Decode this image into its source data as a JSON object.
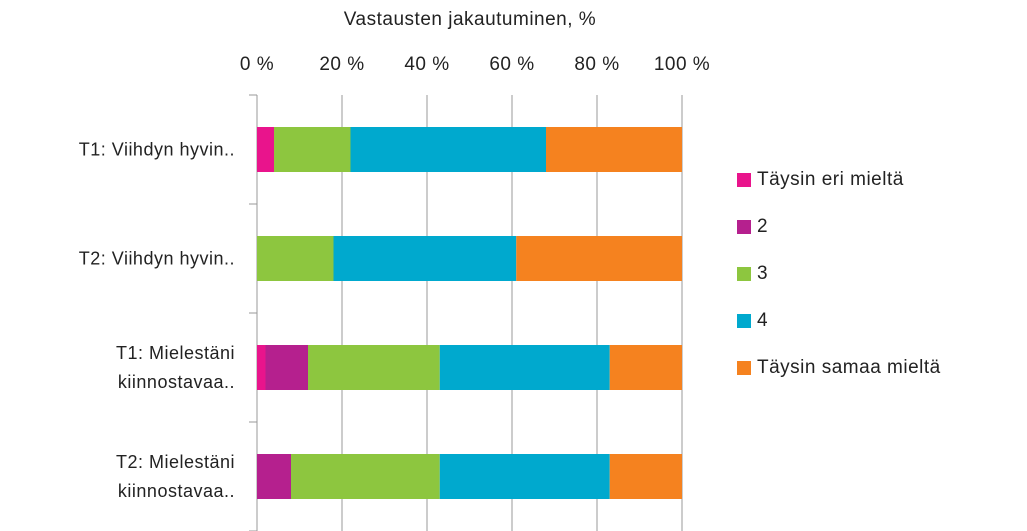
{
  "chart_data": {
    "type": "stacked_barh",
    "title": "Vastausten jakautuminen, %",
    "categories": [
      "T1: Viihdyn hyvin..",
      "T2: Viihdyn hyvin..",
      "T1: Mielestäni kiinnostavaa..",
      "T2: Mielestäni kiinnostavaa.."
    ],
    "series": [
      {
        "name": "Täysin eri mieltä",
        "color": "#e9148c",
        "values": [
          4,
          0,
          2,
          0
        ]
      },
      {
        "name": "2",
        "color": "#b5208e",
        "values": [
          0,
          0,
          10,
          8
        ]
      },
      {
        "name": "3",
        "color": "#8dc63f",
        "values": [
          18,
          18,
          31,
          35
        ]
      },
      {
        "name": "4",
        "color": "#00a9ce",
        "values": [
          46,
          43,
          40,
          40
        ]
      },
      {
        "name": "Täysin samaa mieltä",
        "color": "#f5821f",
        "values": [
          32,
          39,
          17,
          17
        ]
      }
    ],
    "xlim": [
      0,
      100
    ],
    "xticks": [
      {
        "value": 0,
        "label": "0 %"
      },
      {
        "value": 20,
        "label": "20 %"
      },
      {
        "value": 40,
        "label": "40 %"
      },
      {
        "value": 60,
        "label": "60 %"
      },
      {
        "value": 80,
        "label": "80 %"
      },
      {
        "value": 100,
        "label": "100 %"
      }
    ],
    "grid": true,
    "legend": "right"
  }
}
